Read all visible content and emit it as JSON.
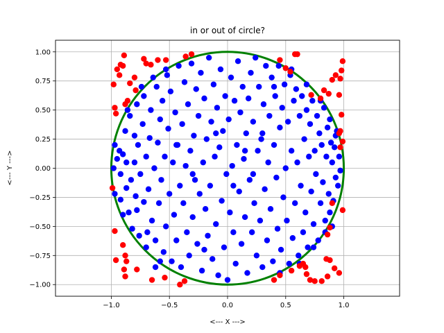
{
  "chart_data": {
    "type": "scatter",
    "title": "in or out of circle?",
    "xlabel": "<--- X --->",
    "ylabel": "<--- Y --->",
    "xlim": [
      -1.48,
      1.48
    ],
    "ylim": [
      -1.1,
      1.1
    ],
    "xticks": [
      -1.0,
      -0.5,
      0.0,
      0.5,
      1.0
    ],
    "yticks": [
      -1.0,
      -0.75,
      -0.5,
      -0.25,
      0.0,
      0.25,
      0.5,
      0.75,
      1.0
    ],
    "xtick_labels": [
      "−1.0",
      "−0.5",
      "0.0",
      "0.5",
      "1.0"
    ],
    "ytick_labels": [
      "−1.00",
      "−0.75",
      "−0.50",
      "−0.25",
      "0.00",
      "0.25",
      "0.50",
      "0.75",
      "1.00"
    ],
    "grid": true,
    "circle": {
      "center": [
        0,
        0
      ],
      "radius": 1.0,
      "color": "#008000"
    },
    "series": [
      {
        "color": "#0000ff",
        "points": [
          [
            -0.97,
            0.2
          ],
          [
            -0.98,
            0.0
          ],
          [
            -0.97,
            -0.22
          ],
          [
            -0.93,
            0.15
          ],
          [
            -0.92,
            -0.05
          ],
          [
            -0.92,
            -0.27
          ],
          [
            -0.9,
            0.12
          ],
          [
            -0.88,
            0.32
          ],
          [
            -0.87,
            0.05
          ],
          [
            -0.87,
            -0.17
          ],
          [
            -0.85,
            -0.38
          ],
          [
            -0.84,
            0.45
          ],
          [
            -0.83,
            -0.1
          ],
          [
            -0.82,
            -0.52
          ],
          [
            -0.8,
            0.28
          ],
          [
            -0.8,
            0.05
          ],
          [
            -0.79,
            -0.24
          ],
          [
            -0.78,
            0.55
          ],
          [
            -0.78,
            -0.36
          ],
          [
            -0.77,
            0.2
          ],
          [
            -0.76,
            -0.58
          ],
          [
            -0.75,
            -0.05
          ],
          [
            -0.73,
            0.38
          ],
          [
            -0.72,
            -0.29
          ],
          [
            -0.72,
            0.62
          ],
          [
            -0.7,
            0.1
          ],
          [
            -0.7,
            -0.68
          ],
          [
            -0.68,
            -0.18
          ],
          [
            -0.67,
            0.26
          ],
          [
            -0.66,
            0.5
          ],
          [
            -0.65,
            -0.45
          ],
          [
            -0.63,
            0.0
          ],
          [
            -0.62,
            -0.62
          ],
          [
            -0.61,
            0.7
          ],
          [
            -0.6,
            0.22
          ],
          [
            -0.59,
            -0.3
          ],
          [
            -0.58,
            0.42
          ],
          [
            -0.57,
            -0.1
          ],
          [
            -0.56,
            0.58
          ],
          [
            -0.55,
            -0.72
          ],
          [
            -0.54,
            0.1
          ],
          [
            -0.53,
            -0.5
          ],
          [
            -0.52,
            0.8
          ],
          [
            -0.51,
            0.34
          ],
          [
            -0.5,
            -0.22
          ],
          [
            -0.49,
            0.66
          ],
          [
            -0.48,
            -0.8
          ],
          [
            -0.47,
            0.05
          ],
          [
            -0.46,
            -0.4
          ],
          [
            -0.45,
            0.48
          ],
          [
            -0.44,
            -0.62
          ],
          [
            -0.43,
            0.2
          ],
          [
            -0.42,
            0.88
          ],
          [
            -0.41,
            -0.15
          ],
          [
            -0.4,
            -0.85
          ],
          [
            -0.39,
            0.38
          ],
          [
            -0.38,
            -0.3
          ],
          [
            -0.37,
            0.74
          ],
          [
            -0.36,
            0.02
          ],
          [
            -0.35,
            -0.55
          ],
          [
            -0.34,
            0.55
          ],
          [
            -0.33,
            -0.75
          ],
          [
            -0.32,
            0.15
          ],
          [
            -0.31,
            0.9
          ],
          [
            -0.3,
            -0.42
          ],
          [
            -0.29,
            0.28
          ],
          [
            -0.28,
            -0.1
          ],
          [
            -0.27,
            0.68
          ],
          [
            -0.26,
            -0.65
          ],
          [
            -0.25,
            0.45
          ],
          [
            -0.24,
            -0.22
          ],
          [
            -0.23,
            0.82
          ],
          [
            -0.22,
            -0.88
          ],
          [
            -0.21,
            0.05
          ],
          [
            -0.2,
            0.6
          ],
          [
            -0.19,
            -0.35
          ],
          [
            -0.18,
            0.25
          ],
          [
            -0.17,
            -0.58
          ],
          [
            -0.16,
            0.95
          ],
          [
            -0.15,
            -0.15
          ],
          [
            -0.14,
            0.4
          ],
          [
            -0.13,
            -0.78
          ],
          [
            -0.12,
            0.72
          ],
          [
            -0.11,
            0.1
          ],
          [
            -0.1,
            -0.48
          ],
          [
            -0.09,
            0.52
          ],
          [
            -0.08,
            -0.92
          ],
          [
            -0.07,
            0.18
          ],
          [
            -0.06,
            0.85
          ],
          [
            -0.05,
            -0.28
          ],
          [
            -0.04,
            0.32
          ],
          [
            -0.03,
            -0.68
          ],
          [
            -0.02,
            0.62
          ],
          [
            -0.01,
            -0.05
          ],
          [
            0.0,
            -0.96
          ],
          [
            0.01,
            0.42
          ],
          [
            0.02,
            -0.38
          ],
          [
            0.03,
            0.78
          ],
          [
            0.04,
            0.02
          ],
          [
            0.05,
            -0.55
          ],
          [
            0.06,
            0.58
          ],
          [
            0.07,
            -0.82
          ],
          [
            0.08,
            0.2
          ],
          [
            0.09,
            0.92
          ],
          [
            0.1,
            -0.2
          ],
          [
            0.11,
            0.48
          ],
          [
            0.12,
            -0.65
          ],
          [
            0.13,
            0.7
          ],
          [
            0.14,
            0.08
          ],
          [
            0.15,
            -0.42
          ],
          [
            0.16,
            0.3
          ],
          [
            0.17,
            -0.9
          ],
          [
            0.18,
            0.6
          ],
          [
            0.19,
            -0.1
          ],
          [
            0.2,
            0.82
          ],
          [
            0.21,
            -0.55
          ],
          [
            0.22,
            0.4
          ],
          [
            0.23,
            -0.3
          ],
          [
            0.24,
            0.95
          ],
          [
            0.25,
            -0.75
          ],
          [
            0.26,
            0.15
          ],
          [
            0.27,
            0.7
          ],
          [
            0.28,
            -0.45
          ],
          [
            0.29,
            0.25
          ],
          [
            0.3,
            -0.85
          ],
          [
            0.31,
            0.55
          ],
          [
            0.32,
            -0.18
          ],
          [
            0.33,
            0.88
          ],
          [
            0.34,
            -0.62
          ],
          [
            0.35,
            0.05
          ],
          [
            0.36,
            0.45
          ],
          [
            0.37,
            -0.35
          ],
          [
            0.38,
            0.78
          ],
          [
            0.39,
            -0.8
          ],
          [
            0.4,
            0.2
          ],
          [
            0.41,
            0.62
          ],
          [
            0.42,
            -0.08
          ],
          [
            0.43,
            -0.52
          ],
          [
            0.44,
            0.88
          ],
          [
            0.45,
            0.35
          ],
          [
            0.46,
            -0.7
          ],
          [
            0.47,
            0.52
          ],
          [
            0.48,
            -0.25
          ],
          [
            0.49,
            0.72
          ],
          [
            0.5,
            0.0
          ],
          [
            0.51,
            -0.45
          ],
          [
            0.52,
            0.4
          ],
          [
            0.53,
            -0.82
          ],
          [
            0.54,
            0.8
          ],
          [
            0.55,
            0.15
          ],
          [
            0.56,
            -0.6
          ],
          [
            0.57,
            0.58
          ],
          [
            0.58,
            -0.3
          ],
          [
            0.59,
            0.68
          ],
          [
            0.6,
            0.05
          ],
          [
            0.61,
            -0.75
          ],
          [
            0.62,
            0.45
          ],
          [
            0.63,
            -0.15
          ],
          [
            0.64,
            0.62
          ],
          [
            0.65,
            -0.55
          ],
          [
            0.66,
            0.25
          ],
          [
            0.67,
            -0.38
          ],
          [
            0.68,
            0.5
          ],
          [
            0.69,
            -0.68
          ],
          [
            0.7,
            0.1
          ],
          [
            0.71,
            0.38
          ],
          [
            0.72,
            -0.2
          ],
          [
            0.73,
            0.58
          ],
          [
            0.74,
            -0.48
          ],
          [
            0.75,
            0.15
          ],
          [
            0.76,
            -0.05
          ],
          [
            0.77,
            0.45
          ],
          [
            0.78,
            -0.62
          ],
          [
            0.79,
            0.3
          ],
          [
            0.8,
            -0.3
          ],
          [
            0.81,
            0.2
          ],
          [
            0.82,
            -0.12
          ],
          [
            0.83,
            0.52
          ],
          [
            0.84,
            -0.45
          ],
          [
            0.85,
            0.1
          ],
          [
            0.86,
            0.35
          ],
          [
            0.87,
            -0.22
          ],
          [
            0.88,
            -0.38
          ],
          [
            0.89,
            0.22
          ],
          [
            0.9,
            0.05
          ],
          [
            0.91,
            -0.28
          ],
          [
            0.92,
            0.18
          ],
          [
            0.93,
            -0.08
          ],
          [
            0.94,
            0.32
          ],
          [
            0.95,
            -0.15
          ],
          [
            0.96,
            0.1
          ],
          [
            0.97,
            -0.02
          ],
          [
            -0.95,
            0.08
          ],
          [
            -0.9,
            -0.4
          ],
          [
            -0.86,
            0.5
          ],
          [
            -0.74,
            0.7
          ],
          [
            -0.69,
            -0.55
          ],
          [
            -0.64,
            0.78
          ],
          [
            -0.58,
            -0.8
          ],
          [
            -0.53,
            0.85
          ],
          [
            0.45,
            -0.9
          ],
          [
            0.55,
            0.85
          ],
          [
            0.62,
            -0.82
          ],
          [
            0.68,
            0.72
          ],
          [
            0.74,
            -0.68
          ],
          [
            0.8,
            0.58
          ],
          [
            0.84,
            -0.55
          ],
          [
            0.88,
            0.42
          ],
          [
            0.9,
            -0.5
          ],
          [
            0.93,
            0.28
          ],
          [
            -0.44,
            0.2
          ],
          [
            -0.2,
            -0.7
          ],
          [
            0.15,
            0.15
          ],
          [
            0.3,
            0.3
          ],
          [
            -0.1,
            0.3
          ],
          [
            0.05,
            -0.15
          ],
          [
            -0.3,
            -0.05
          ],
          [
            0.22,
            -0.05
          ],
          [
            -0.62,
            -0.85
          ],
          [
            0.4,
            0.7
          ]
        ]
      },
      {
        "color": "#ff0000",
        "points": [
          [
            -0.98,
            0.72
          ],
          [
            -0.97,
            0.52
          ],
          [
            -0.96,
            0.47
          ],
          [
            -0.95,
            0.85
          ],
          [
            -0.93,
            0.8
          ],
          [
            -0.92,
            0.89
          ],
          [
            -0.9,
            0.88
          ],
          [
            -0.89,
            0.97
          ],
          [
            -0.88,
            0.55
          ],
          [
            -0.86,
            0.58
          ],
          [
            -0.84,
            0.73
          ],
          [
            -0.8,
            0.78
          ],
          [
            -0.79,
            0.67
          ],
          [
            -0.72,
            0.94
          ],
          [
            -0.7,
            0.9
          ],
          [
            -0.66,
            0.89
          ],
          [
            -0.6,
            0.93
          ],
          [
            -0.53,
            0.93
          ],
          [
            -0.36,
            0.96
          ],
          [
            -0.31,
            0.98
          ],
          [
            0.45,
            0.93
          ],
          [
            0.5,
            0.86
          ],
          [
            0.54,
            0.83
          ],
          [
            0.58,
            0.98
          ],
          [
            0.6,
            0.98
          ],
          [
            0.72,
            0.63
          ],
          [
            0.8,
            0.6
          ],
          [
            0.83,
            0.67
          ],
          [
            0.87,
            0.64
          ],
          [
            0.9,
            0.76
          ],
          [
            0.93,
            0.8
          ],
          [
            0.96,
            0.63
          ],
          [
            0.98,
            0.84
          ],
          [
            0.99,
            0.92
          ],
          [
            0.97,
            0.77
          ],
          [
            0.98,
            0.46
          ],
          [
            0.97,
            0.32
          ],
          [
            0.99,
            0.23
          ],
          [
            0.97,
            0.18
          ],
          [
            0.96,
            0.3
          ],
          [
            -0.99,
            -0.17
          ],
          [
            -0.97,
            -0.54
          ],
          [
            -0.96,
            -0.79
          ],
          [
            -0.9,
            -0.66
          ],
          [
            -0.89,
            -0.87
          ],
          [
            -0.88,
            -0.93
          ],
          [
            -0.87,
            -0.8
          ],
          [
            -0.88,
            -0.75
          ],
          [
            -0.78,
            -0.87
          ],
          [
            -0.65,
            -0.96
          ],
          [
            -0.54,
            -0.94
          ],
          [
            -0.41,
            -1.0
          ],
          [
            -0.37,
            -0.97
          ],
          [
            0.4,
            -0.96
          ],
          [
            0.45,
            -0.92
          ],
          [
            0.55,
            -0.88
          ],
          [
            0.62,
            -0.84
          ],
          [
            0.65,
            -0.82
          ],
          [
            0.67,
            -0.85
          ],
          [
            0.68,
            -0.91
          ],
          [
            0.71,
            -0.96
          ],
          [
            0.75,
            -0.97
          ],
          [
            0.81,
            -0.97
          ],
          [
            0.86,
            -0.93
          ],
          [
            0.88,
            -0.79
          ],
          [
            0.85,
            -0.78
          ],
          [
            0.92,
            -0.86
          ],
          [
            0.96,
            -0.9
          ],
          [
            0.99,
            -0.36
          ],
          [
            0.88,
            -0.51
          ],
          [
            0.86,
            -0.57
          ],
          [
            0.9,
            -0.3
          ]
        ]
      }
    ]
  }
}
